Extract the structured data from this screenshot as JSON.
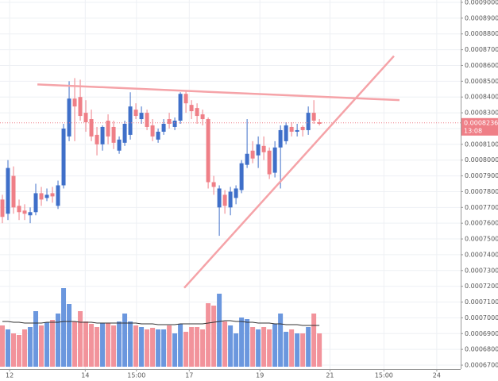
{
  "chart_data": {
    "type": "candlestick",
    "x": [
      0,
      1,
      2,
      3,
      4,
      5,
      6,
      7,
      8,
      9,
      10,
      11,
      12,
      13,
      14,
      15,
      16,
      17,
      18,
      19,
      20,
      21,
      22,
      23,
      24,
      25,
      26,
      27,
      28,
      29,
      30,
      31,
      32,
      33,
      34,
      35,
      36,
      37,
      38,
      39,
      40,
      41,
      42,
      43,
      44,
      45,
      46,
      47,
      48,
      49,
      50,
      51,
      52,
      53,
      54,
      55,
      56,
      57
    ],
    "open": [
      0.000775,
      0.000766,
      0.00079,
      0.000771,
      0.000768,
      0.000765,
      0.000767,
      0.000779,
      0.000776,
      0.000779,
      0.000771,
      0.000784,
      0.000815,
      0.000839,
      0.00084,
      0.00083,
      0.000826,
      0.000816,
      0.00081,
      0.000825,
      0.000821,
      0.000806,
      0.000811,
      0.000816,
      0.000832,
      0.000826,
      0.00083,
      0.000822,
      0.000813,
      0.000818,
      0.000826,
      0.000821,
      0.000825,
      0.000842,
      0.000835,
      0.000833,
      0.000829,
      0.000826,
      0.000786,
      0.00077,
      0.000778,
      0.00077,
      0.000776,
      0.000781,
      0.000797,
      0.000806,
      0.000803,
      0.000809,
      0.000806,
      0.000792,
      0.000808,
      0.000812,
      0.000821,
      0.000818,
      0.000821,
      0.000819,
      0.00083,
      0.000824
    ],
    "close": [
      0.000764,
      0.000795,
      0.00077,
      0.000767,
      0.000766,
      0.000767,
      0.000779,
      0.000775,
      0.000778,
      0.000777,
      0.000784,
      0.00082,
      0.000839,
      0.000834,
      0.000828,
      0.000824,
      0.000815,
      0.00081,
      0.000821,
      0.000815,
      0.000811,
      0.000813,
      0.000823,
      0.000834,
      0.000828,
      0.00083,
      0.000821,
      0.000815,
      0.000818,
      0.000823,
      0.000823,
      0.000825,
      0.000842,
      0.000836,
      0.000831,
      0.000828,
      0.000826,
      0.000786,
      0.000783,
      0.000782,
      0.000771,
      0.00078,
      0.000782,
      0.000798,
      0.000804,
      0.000801,
      0.00081,
      0.000805,
      0.000791,
      0.000808,
      0.000819,
      0.000822,
      0.000818,
      0.000819,
      0.000819,
      0.00083,
      0.000825,
      0.000823
    ],
    "high": [
      0.000778,
      0.0008,
      0.000796,
      0.000775,
      0.000772,
      0.00077,
      0.000785,
      0.000783,
      0.000782,
      0.000783,
      0.000787,
      0.000823,
      0.00085,
      0.000852,
      0.000851,
      0.000838,
      0.000832,
      0.000821,
      0.000822,
      0.000829,
      0.000825,
      0.000815,
      0.000825,
      0.000843,
      0.000836,
      0.000834,
      0.000832,
      0.000826,
      0.00082,
      0.000826,
      0.00083,
      0.000827,
      0.000843,
      0.000844,
      0.000838,
      0.000836,
      0.000832,
      0.000827,
      0.00079,
      0.000784,
      0.000781,
      0.000783,
      0.000784,
      0.0008,
      0.000826,
      0.000812,
      0.000815,
      0.000815,
      0.000808,
      0.000812,
      0.000822,
      0.000824,
      0.000824,
      0.000823,
      0.000822,
      0.000834,
      0.000838,
      0.000826
    ],
    "low": [
      0.00076,
      0.000762,
      0.000766,
      0.000762,
      0.000762,
      0.00076,
      0.000765,
      0.000771,
      0.000774,
      0.000773,
      0.000769,
      0.000782,
      0.000812,
      0.000812,
      0.000825,
      0.000818,
      0.000812,
      0.000803,
      0.000806,
      0.00081,
      0.000807,
      0.000804,
      0.000809,
      0.000813,
      0.000826,
      0.000823,
      0.000819,
      0.000812,
      0.000811,
      0.000816,
      0.00082,
      0.000819,
      0.000823,
      0.00083,
      0.000826,
      0.000823,
      0.000822,
      0.000782,
      0.000778,
      0.000752,
      0.000766,
      0.000765,
      0.000772,
      0.000779,
      0.000795,
      0.000798,
      0.000795,
      0.0008,
      0.000788,
      0.000789,
      0.000782,
      0.00081,
      0.000815,
      0.000815,
      0.000815,
      0.000816,
      0.000823,
      0.000822
    ],
    "volume": [
      52,
      47,
      42,
      40,
      47,
      50,
      70,
      52,
      56,
      59,
      67,
      99,
      79,
      57,
      70,
      57,
      54,
      50,
      55,
      55,
      52,
      57,
      67,
      57,
      52,
      50,
      47,
      49,
      47,
      47,
      52,
      42,
      54,
      44,
      50,
      50,
      47,
      80,
      77,
      92,
      57,
      52,
      42,
      62,
      60,
      50,
      47,
      50,
      47,
      54,
      67,
      44,
      47,
      42,
      42,
      50,
      67,
      42
    ],
    "volume_ma": [
      57,
      57,
      56,
      56,
      55,
      55,
      55,
      55,
      56,
      56,
      56,
      57,
      57,
      57,
      56,
      56,
      56,
      55,
      55,
      55,
      55,
      55,
      55,
      55,
      55,
      54,
      54,
      54,
      53,
      53,
      53,
      53,
      54,
      54,
      54,
      54,
      54,
      55,
      56,
      57,
      58,
      58,
      57,
      57,
      56,
      56,
      55,
      55,
      55,
      54,
      54,
      53,
      53,
      53,
      52,
      52,
      52,
      52
    ],
    "volume_ylim": [
      0,
      100
    ],
    "up_color": "#3f6fc9",
    "down_color": "#ef7f87",
    "volume_up_color": "#6b97de",
    "volume_down_color": "#f2939b",
    "trendline_color": "#f5a3a8",
    "trendlines": [
      {
        "x": [
          6.3,
          71.4
        ],
        "y": [
          0.000848,
          0.000838
        ]
      },
      {
        "x": [
          32.7,
          70.4
        ],
        "y": [
          0.000719,
          0.000866
        ]
      }
    ],
    "last_price": {
      "value": 0.0008236,
      "label": "0.0008236"
    },
    "countdown": "13:08",
    "xlim": [
      -0.43,
      82.4
    ],
    "xticks": [
      {
        "value": 1.3,
        "label": "12"
      },
      {
        "value": 14.9,
        "label": "14"
      },
      {
        "value": 24.1,
        "label": "15:00"
      },
      {
        "value": 33.6,
        "label": "17"
      },
      {
        "value": 46.3,
        "label": "19"
      },
      {
        "value": 58.9,
        "label": "21"
      },
      {
        "value": 68.6,
        "label": "15:00"
      },
      {
        "value": 78.1,
        "label": "24"
      }
    ],
    "ylim": [
      0.0006675,
      0.0009015
    ],
    "yticks": [
      {
        "value": 0.0009,
        "label": "0.0009000"
      },
      {
        "value": 0.00089,
        "label": "0.0008900"
      },
      {
        "value": 0.00088,
        "label": "0.0008800"
      },
      {
        "value": 0.00087,
        "label": "0.0008700"
      },
      {
        "value": 0.00086,
        "label": "0.0008600"
      },
      {
        "value": 0.00085,
        "label": "0.0008500"
      },
      {
        "value": 0.00084,
        "label": "0.0008400"
      },
      {
        "value": 0.00083,
        "label": "0.0008300"
      },
      {
        "value": 0.00082,
        "label": "0.0008200"
      },
      {
        "value": 0.00081,
        "label": "0.0008100"
      },
      {
        "value": 0.0008,
        "label": "0.0008000"
      },
      {
        "value": 0.00079,
        "label": "0.0007900"
      },
      {
        "value": 0.00078,
        "label": "0.0007800"
      },
      {
        "value": 0.00077,
        "label": "0.0007700"
      },
      {
        "value": 0.00076,
        "label": "0.0007600"
      },
      {
        "value": 0.00075,
        "label": "0.0007500"
      },
      {
        "value": 0.00074,
        "label": "0.0007400"
      },
      {
        "value": 0.00073,
        "label": "0.0007300"
      },
      {
        "value": 0.00072,
        "label": "0.0007200"
      },
      {
        "value": 0.00071,
        "label": "0.0007100"
      },
      {
        "value": 0.0007,
        "label": "0.0007000"
      },
      {
        "value": 0.00069,
        "label": "0.0006900"
      },
      {
        "value": 0.00068,
        "label": "0.0006800"
      },
      {
        "value": 0.00067,
        "label": "0.0006700"
      }
    ],
    "grid": true
  }
}
